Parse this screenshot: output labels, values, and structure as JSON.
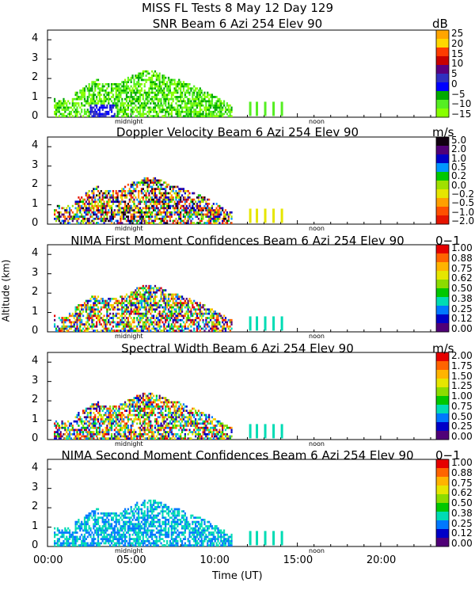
{
  "main_title": "MISS FL Tests    8 May 12 Day 129",
  "y_axis_label": "Altitude (km)",
  "x_axis_title": "Time (UT)",
  "x_ticks": [
    "00:00",
    "05:00",
    "10:00",
    "15:00",
    "20:00"
  ],
  "time_markers": [
    "midnight",
    "noon"
  ],
  "chart_data": [
    {
      "type": "heatmap",
      "title": "SNR Beam 6 Azi 254 Elev 90",
      "unit": "dB",
      "xlim": [
        0,
        24
      ],
      "ylim": [
        0,
        4.5
      ],
      "xlabel": "",
      "ylabel": "",
      "y_ticks": [
        "0",
        "1",
        "2",
        "3",
        "4"
      ],
      "colorbar": {
        "labels": [
          "25",
          "20",
          "15",
          "10",
          "5",
          "0",
          "−5",
          "−10",
          "−15"
        ],
        "colors": [
          "#ffa500",
          "#ffd700",
          "#ff3c00",
          "#c80000",
          "#5a0080",
          "#3030c0",
          "#0000ff",
          "#00aa00",
          "#55ee22",
          "#88ff00"
        ]
      }
    },
    {
      "type": "heatmap",
      "title": "Doppler Velocity Beam 6 Azi 254 Elev 90",
      "unit": "m/s",
      "xlim": [
        0,
        24
      ],
      "ylim": [
        0,
        4.5
      ],
      "xlabel": "",
      "ylabel": "",
      "y_ticks": [
        "0",
        "1",
        "2",
        "3",
        "4"
      ],
      "colorbar": {
        "labels": [
          "5.0",
          "2.0",
          "1.0",
          "0.5",
          "0.2",
          "0.0",
          "−0.2",
          "−0.5",
          "−1.0",
          "−2.0"
        ],
        "colors": [
          "#100010",
          "#500078",
          "#0000c8",
          "#0096ff",
          "#00c800",
          "#a0e000",
          "#e6e600",
          "#ffa000",
          "#ff5000",
          "#e61400"
        ]
      }
    },
    {
      "type": "heatmap",
      "title": "NIMA First Moment Confidences Beam 6 Azi 254 Elev 90",
      "unit": "0−1",
      "xlim": [
        0,
        24
      ],
      "ylim": [
        0,
        4.5
      ],
      "xlabel": "",
      "ylabel": "",
      "y_ticks": [
        "0",
        "1",
        "2",
        "3",
        "4"
      ],
      "colorbar": {
        "labels": [
          "1.00",
          "0.88",
          "0.75",
          "0.62",
          "0.50",
          "0.38",
          "0.25",
          "0.12",
          "0.00"
        ],
        "colors": [
          "#e60000",
          "#ff6400",
          "#ffb400",
          "#e6e600",
          "#8cdc00",
          "#00c800",
          "#00dcb4",
          "#0078ff",
          "#0000c8",
          "#500078"
        ]
      }
    },
    {
      "type": "heatmap",
      "title": "Spectral Width Beam 6 Azi 254 Elev 90",
      "unit": "m/s",
      "xlim": [
        0,
        24
      ],
      "ylim": [
        0,
        4.5
      ],
      "xlabel": "",
      "ylabel": "",
      "y_ticks": [
        "0",
        "1",
        "2",
        "3",
        "4"
      ],
      "colorbar": {
        "labels": [
          "2.00",
          "1.75",
          "1.50",
          "1.25",
          "1.00",
          "0.75",
          "0.50",
          "0.25",
          "0.00"
        ],
        "colors": [
          "#e60000",
          "#ff6400",
          "#ffb400",
          "#e6e600",
          "#8cdc00",
          "#00c800",
          "#00dcb4",
          "#0078ff",
          "#0000c8",
          "#500078"
        ]
      }
    },
    {
      "type": "heatmap",
      "title": "NIMA Second Moment Confidences Beam 6 Azi 254 Elev 90",
      "unit": "0−1",
      "xlim": [
        0,
        24
      ],
      "ylim": [
        0,
        4.5
      ],
      "xlabel": "",
      "ylabel": "",
      "y_ticks": [
        "0",
        "1",
        "2",
        "3",
        "4"
      ],
      "colorbar": {
        "labels": [
          "1.00",
          "0.88",
          "0.75",
          "0.62",
          "0.50",
          "0.38",
          "0.25",
          "0.12",
          "0.00"
        ],
        "colors": [
          "#e60000",
          "#ff6400",
          "#ffb400",
          "#e6e600",
          "#8cdc00",
          "#00c800",
          "#00dcb4",
          "#0078ff",
          "#0000c8",
          "#500078"
        ]
      }
    }
  ]
}
